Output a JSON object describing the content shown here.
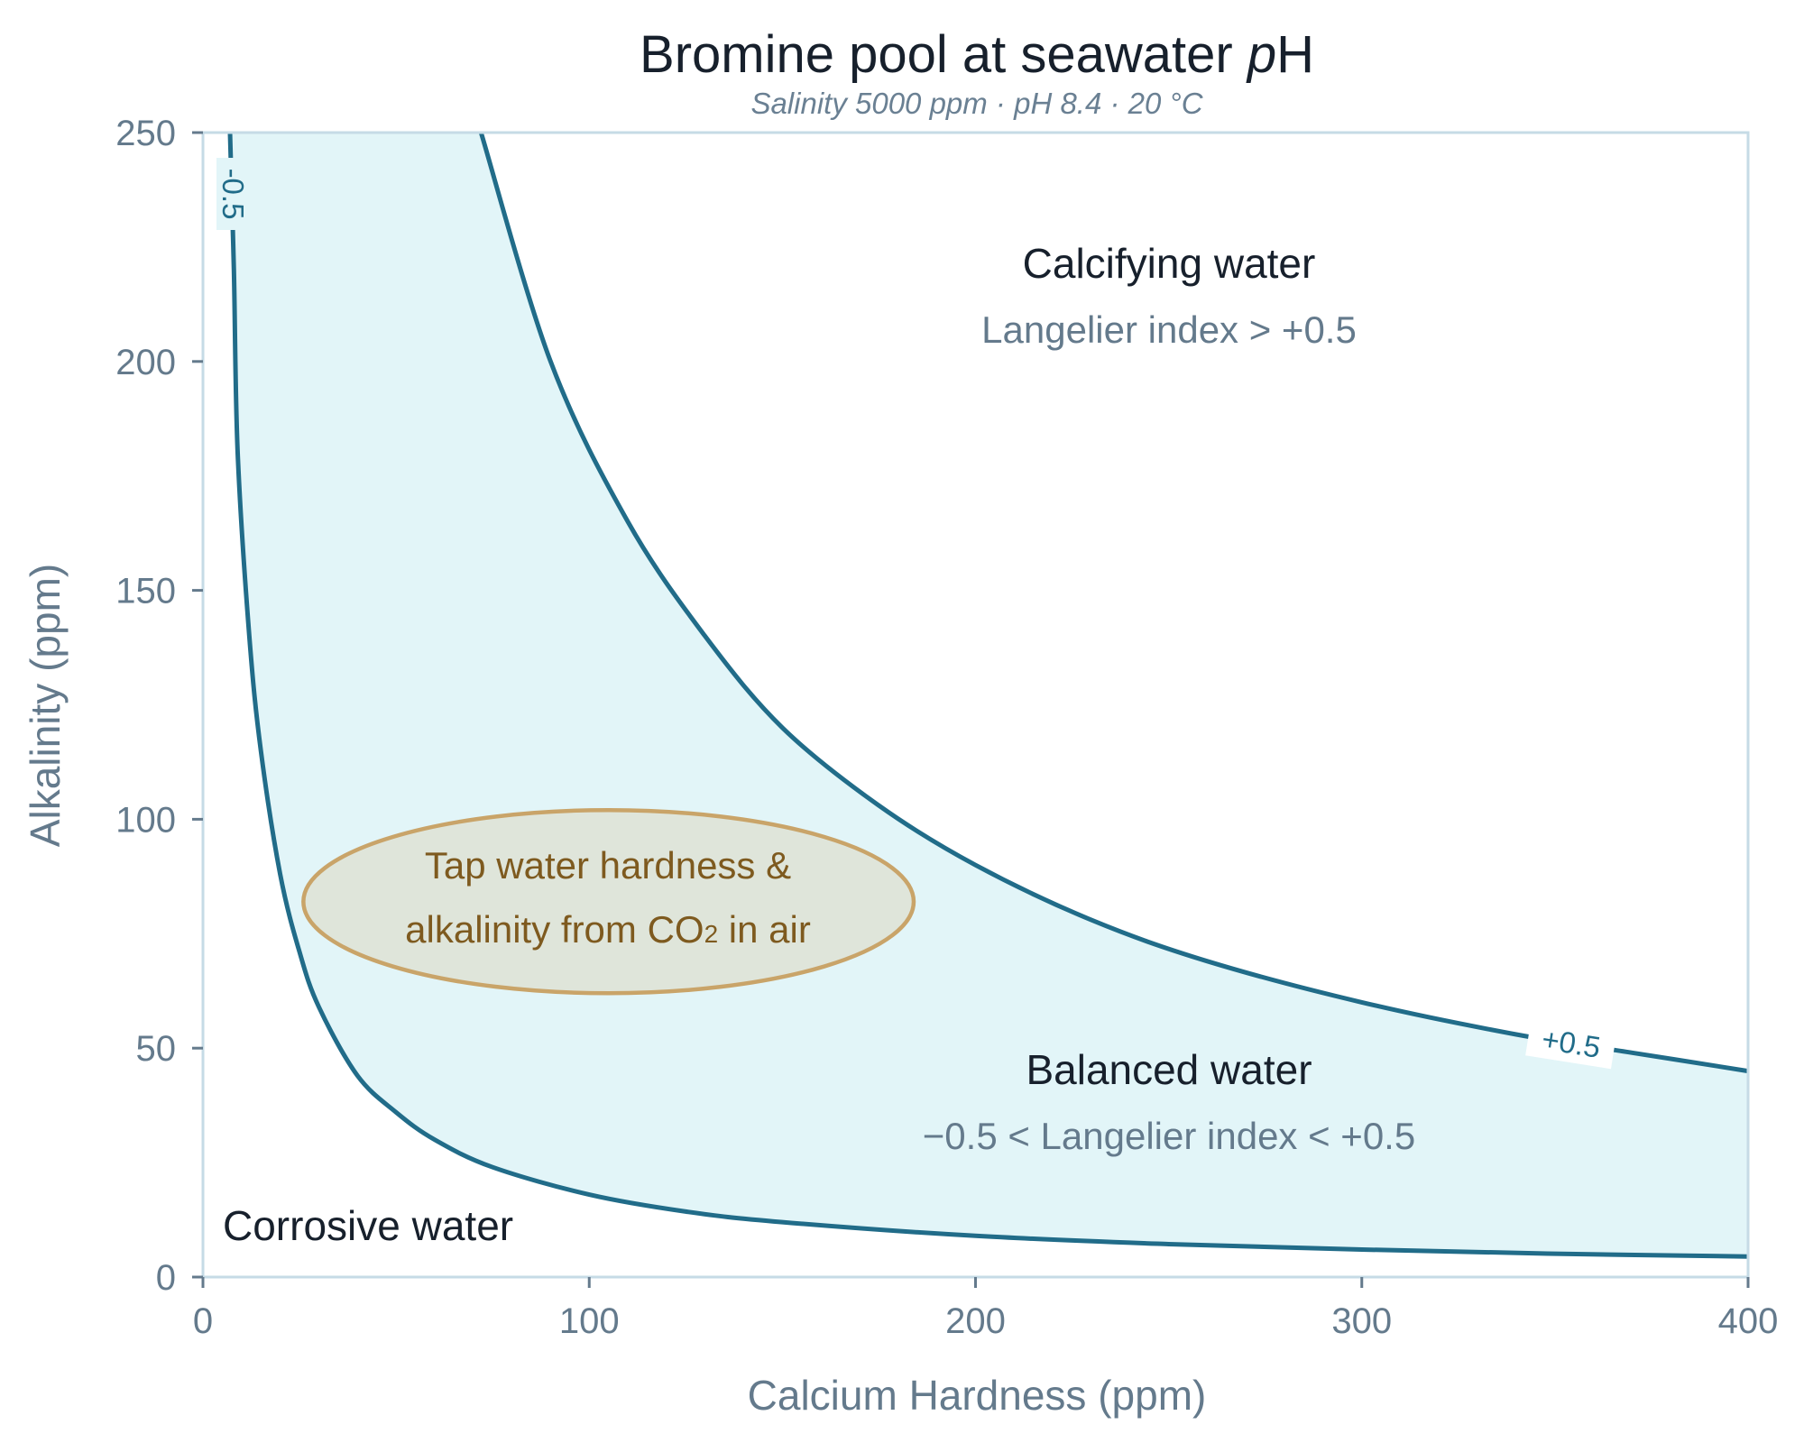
{
  "chart_data": {
    "type": "line",
    "title_main": "Bromine pool at seawater ",
    "title_italic": "p",
    "title_tail": "H",
    "subtitle": "Salinity 5000 ppm  ·  pH 8.4  ·  20 °C",
    "xlabel": "Calcium Hardness  (ppm)",
    "ylabel": "Alkalinity  (ppm)",
    "xlim": [
      0,
      400
    ],
    "ylim": [
      0,
      250
    ],
    "x_ticks": [
      0,
      100,
      200,
      300,
      400
    ],
    "y_ticks": [
      0,
      50,
      100,
      150,
      200,
      250
    ],
    "grid": false,
    "series": [
      {
        "name": "+0.5",
        "x": [
          72,
          90,
          110,
          130,
          150,
          175,
          200,
          230,
          260,
          300,
          340,
          370,
          400
        ],
        "y": [
          250,
          200,
          165,
          140,
          120,
          103,
          90,
          78,
          69,
          60,
          53,
          49,
          45
        ]
      },
      {
        "name": "-0.5",
        "x": [
          7,
          8,
          9,
          12,
          15,
          20,
          25,
          30,
          40,
          50,
          60,
          75,
          100,
          125,
          150,
          200,
          250,
          300,
          350,
          400
        ],
        "y": [
          250,
          220,
          180,
          140,
          115,
          88,
          71,
          59,
          44,
          36,
          30,
          24,
          18,
          14.3,
          12,
          9,
          7.2,
          6,
          5.1,
          4.5
        ]
      }
    ],
    "regions": {
      "calcifying": {
        "label": "Calcifying water",
        "sub": "Langelier index > +0.5"
      },
      "balanced": {
        "label": "Balanced water",
        "sub": "−0.5 < Langelier index < +0.5"
      },
      "corrosive": {
        "label": "Corrosive water"
      }
    },
    "annotation": {
      "line1": "Tap water hardness &",
      "line2_pre": "alkalinity from CO",
      "line2_sub": "2",
      "line2_post": " in air",
      "center": [
        105,
        82
      ],
      "radius": [
        79,
        20
      ]
    },
    "colors": {
      "curve": "#216c89",
      "band_fill": "#e2f5f8",
      "frame": "#c6dbe6",
      "ellipse_fill": "#dfe5da",
      "ellipse_stroke": "#c9a469",
      "note_text": "#7e5a1f"
    }
  }
}
